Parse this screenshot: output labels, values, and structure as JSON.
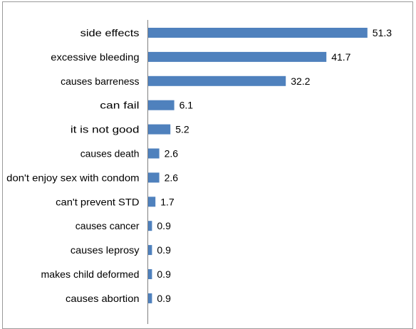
{
  "chart_data": {
    "type": "bar",
    "orientation": "horizontal",
    "categories": [
      "side effects",
      "excessive bleeding",
      "causes barreness",
      "can fail",
      "it is not good",
      "causes death",
      "don't enjoy sex with condom",
      "can't prevent STD",
      "causes cancer",
      "causes leprosy",
      "makes child deformed",
      "causes abortion"
    ],
    "values": [
      51.3,
      41.7,
      32.2,
      6.1,
      5.2,
      2.6,
      2.6,
      1.7,
      0.9,
      0.9,
      0.9,
      0.9
    ],
    "title": "",
    "xlabel": "",
    "ylabel": "",
    "xlim": [
      0,
      60
    ],
    "grid": false,
    "legend": "none",
    "bar_color": "#4f81bd"
  }
}
